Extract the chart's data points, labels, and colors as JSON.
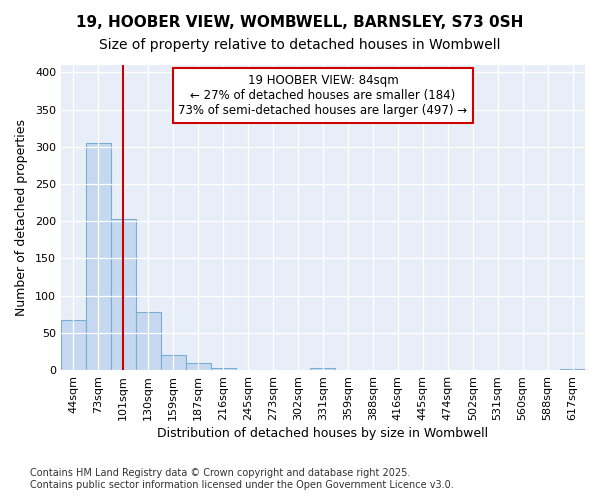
{
  "title": "19, HOOBER VIEW, WOMBWELL, BARNSLEY, S73 0SH",
  "subtitle": "Size of property relative to detached houses in Wombwell",
  "xlabel": "Distribution of detached houses by size in Wombwell",
  "ylabel": "Number of detached properties",
  "bin_labels": [
    "44sqm",
    "73sqm",
    "101sqm",
    "130sqm",
    "159sqm",
    "187sqm",
    "216sqm",
    "245sqm",
    "273sqm",
    "302sqm",
    "331sqm",
    "359sqm",
    "388sqm",
    "416sqm",
    "445sqm",
    "474sqm",
    "502sqm",
    "531sqm",
    "560sqm",
    "588sqm",
    "617sqm"
  ],
  "bar_heights": [
    67,
    305,
    203,
    78,
    20,
    10,
    3,
    0,
    0,
    0,
    3,
    0,
    0,
    0,
    0,
    0,
    0,
    0,
    0,
    0,
    2
  ],
  "bar_color": "#c5d8f0",
  "bar_edge_color": "#7aadd4",
  "ylim": [
    0,
    410
  ],
  "yticks": [
    0,
    50,
    100,
    150,
    200,
    250,
    300,
    350,
    400
  ],
  "red_line_x": 2.0,
  "annotation_text": "19 HOOBER VIEW: 84sqm\n← 27% of detached houses are smaller (184)\n73% of semi-detached houses are larger (497) →",
  "annotation_box_color": "#ffffff",
  "annotation_box_edge": "#cc0000",
  "red_line_color": "#cc0000",
  "plot_bg_color": "#e8eef8",
  "fig_bg_color": "#ffffff",
  "grid_color": "#ffffff",
  "footer_line1": "Contains HM Land Registry data © Crown copyright and database right 2025.",
  "footer_line2": "Contains public sector information licensed under the Open Government Licence v3.0.",
  "title_fontsize": 11,
  "subtitle_fontsize": 10,
  "tick_fontsize": 8,
  "label_fontsize": 9,
  "footer_fontsize": 7
}
